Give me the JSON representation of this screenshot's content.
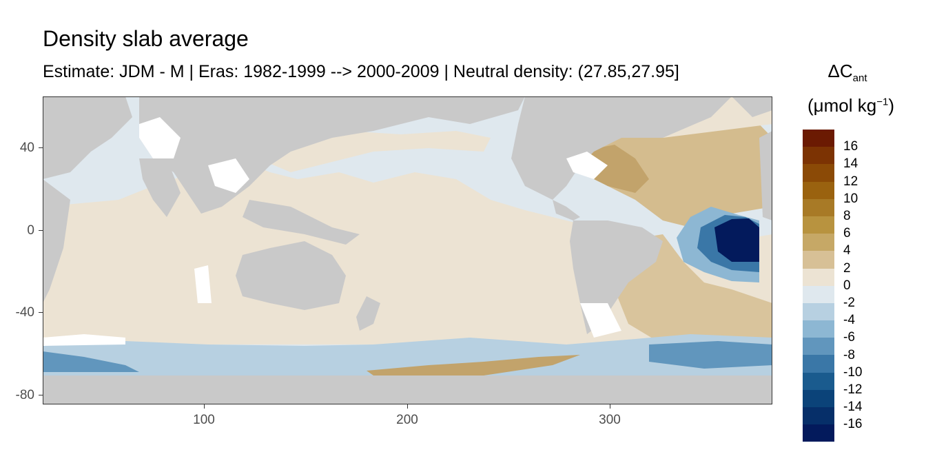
{
  "title": "Density slab average",
  "subtitle": "Estimate: JDM - M | Eras: 1982-1999 --> 2000-2009 | Neutral density: (27.85,27.95]",
  "legend": {
    "title_symbol": "ΔC",
    "title_subscript": "ant",
    "unit_prefix": "(μmol kg",
    "unit_superscript": "−1",
    "unit_suffix": ")",
    "breaks": [
      "16",
      "14",
      "12",
      "10",
      "8",
      "6",
      "4",
      "2",
      "0",
      "-2",
      "-4",
      "-6",
      "-8",
      "-10",
      "-12",
      "-14",
      "-16"
    ],
    "colors": [
      "#6b1a02",
      "#7c3303",
      "#8b4a06",
      "#9a620f",
      "#a87a26",
      "#b8933f",
      "#c6a866",
      "#d7c096",
      "#ece3d3",
      "#dfe8ee",
      "#b7d0e1",
      "#8db7d3",
      "#6196bd",
      "#3a77a7",
      "#1a5b8e",
      "#0b4379",
      "#062f69",
      "#031a5c"
    ]
  },
  "axes": {
    "x_ticks": [
      "100",
      "200",
      "300"
    ],
    "y_ticks": [
      "40",
      "0",
      "-40",
      "-80"
    ]
  },
  "map_colors": {
    "land": "#c9c9c9",
    "no_data": "#ffffff",
    "ocean_pos_light": "#ece3d3",
    "ocean_neg_light": "#dfe8ee",
    "ocean_tan": "#d4bc8e",
    "ocean_tan_dark": "#c2a36b",
    "ocean_blue": "#8db7d3",
    "ocean_blue_mid": "#3a77a7",
    "ocean_blue_dark": "#031a5c",
    "panel_border": "#333333"
  }
}
